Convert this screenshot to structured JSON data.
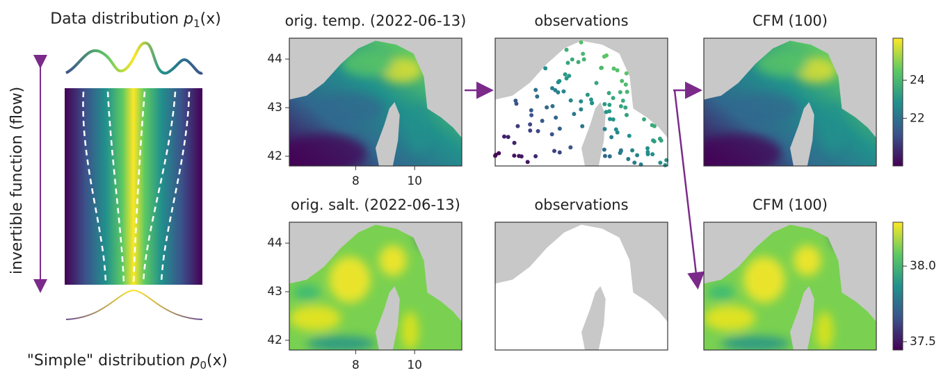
{
  "flow": {
    "top_label": {
      "text": "Data distribution ",
      "var": "p",
      "sub": "1",
      "arg": "(x)"
    },
    "axis_label": "invertible function (flow)",
    "bottom_label": {
      "text": "\"Simple\" distribution ",
      "var": "p",
      "sub": "0",
      "arg": "(x)"
    }
  },
  "maps": {
    "xlim": [
      5.75,
      11.6
    ],
    "ylim": [
      41.8,
      44.43
    ],
    "xticks": [
      8,
      10
    ],
    "yticks": [
      42,
      43,
      44
    ],
    "rows": [
      {
        "panels": [
          {
            "title": "orig. temp. (2022-06-13)"
          },
          {
            "title": "observations"
          },
          {
            "title": "CFM (100)"
          }
        ],
        "colorbar": {
          "lim": [
            19.5,
            26.2
          ],
          "ticks": [
            22,
            24
          ]
        }
      },
      {
        "panels": [
          {
            "title": "orig. salt. (2022-06-13)"
          },
          {
            "title": "observations"
          },
          {
            "title": "CFM (100)"
          }
        ],
        "colorbar": {
          "lim": [
            37.445,
            38.29
          ],
          "ticks": [
            37.5,
            {
              "value": 38,
              "label": "38.0"
            }
          ]
        }
      }
    ]
  }
}
